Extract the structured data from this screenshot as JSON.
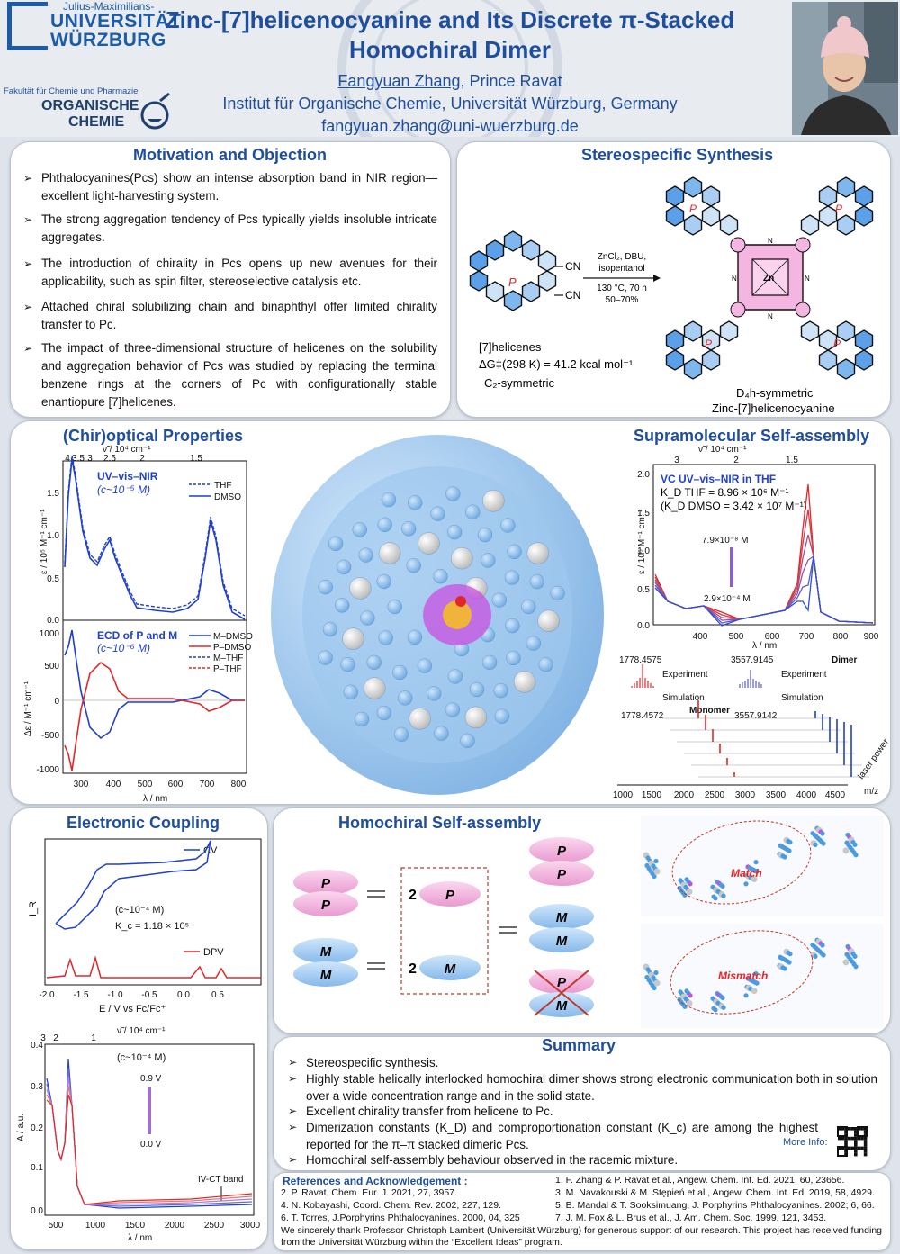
{
  "header": {
    "uni_line1": "Julius-Maximilians-",
    "uni_line2": "UNIVERSITÄT",
    "uni_line3": "WÜRZBURG",
    "faculty": "Fakultät für Chemie und Pharmazie",
    "oc_line1": "ORGANISCHE",
    "oc_line2": "CHEMIE",
    "title_line1": "Zinc-[7]helicenocyanine and Its Discrete π-Stacked",
    "title_line2": "Homochiral Dimer",
    "author1": "Fangyuan Zhang",
    "author2": ", Prince Ravat",
    "institute": "Institut für Organische Chemie, Universität Würzburg, Germany",
    "email": "fangyuan.zhang@uni-wuerzburg.de"
  },
  "motivation": {
    "title": "Motivation and Objection",
    "bullets": [
      "Phthalocyanines(Pcs) show an intense absorption band in NIR region—excellent light-harvesting system.",
      "The strong aggregation tendency of Pcs typically yields insoluble intricate aggregates.",
      "The introduction of chirality in Pcs opens up new avenues for their applicability, such as spin filter, stereoselective catalysis etc.",
      "Attached chiral solubilizing chain and binaphthyl offer limited chirality transfer to Pc.",
      "The impact of three-dimensional structure of helicenes on the solubility and aggregation behavior of Pcs was studied by replacing the terminal benzene rings at the corners of Pc with configurationally stable enantiopure [7]helicenes."
    ]
  },
  "synthesis": {
    "title": "Stereospecific Synthesis",
    "reagents_top1": "ZnCl₂, DBU,",
    "reagents_top2": "isopentanol",
    "reagents_bot1": "130 °C, 70 h",
    "reagents_bot2": "50–70%",
    "cn": "CN",
    "p": "P",
    "zn": "Zn",
    "n": "N",
    "helicene_name": "[7]helicenes",
    "barrier": "ΔG‡(298 K) = 41.2 kcal mol⁻¹",
    "sym1": "C₂-symmetric",
    "sym2": "D₄h-symmetric",
    "product_name": "Zinc-[7]helicenocyanine"
  },
  "chiroptical": {
    "title": "(Chir)optical Properties",
    "top_axis_label": "ν̃ / 10⁴ cm⁻¹",
    "top_ticks": [
      "4",
      "3.5",
      "3",
      "2.5",
      "2",
      "1.5"
    ],
    "uv_label": "UV–vis–NIR",
    "uv_conc": "(c~10⁻⁵ M)",
    "uv_ylabel": "ε / 10⁵ M⁻¹ cm⁻¹",
    "uv_yticks": [
      "1.5",
      "1.0",
      "0.5",
      "0.0"
    ],
    "uv_legend": [
      "THF",
      "DMSO"
    ],
    "ecd_label": "ECD of P and M",
    "ecd_conc": "(c~10⁻⁶ M)",
    "ecd_ylabel": "Δε / M⁻¹ cm⁻¹",
    "ecd_yticks": [
      "1000",
      "500",
      "0",
      "-500",
      "-1000"
    ],
    "ecd_legend": [
      "M–DMSO",
      "P–DMSO",
      "M–THF",
      "P–THF"
    ],
    "xticks": [
      "300",
      "400",
      "500",
      "600",
      "700",
      "800"
    ],
    "xlabel": "λ / nm"
  },
  "supramolecular": {
    "title": "Supramolecular Self-assembly",
    "top_axis_label": "ν̃ / 10⁴ cm⁻¹",
    "top_ticks": [
      "3",
      "2",
      "1.5"
    ],
    "vc_label": "VC UV–vis–NIR in THF",
    "kd_thf": "K_D THF = 8.96 × 10⁶ M⁻¹",
    "kd_dmso": "(K_D DMSO = 3.42 × 10⁷ M⁻¹)",
    "conc_high": "7.9×10⁻⁸ M",
    "conc_low": "2.9×10⁻⁴ M",
    "ylabel": "ε / 10⁵ M⁻¹ cm⁻¹",
    "yticks": [
      "2.0",
      "1.5",
      "1.0",
      "0.5",
      "0.0"
    ],
    "xticks": [
      "400",
      "500",
      "600",
      "700",
      "800",
      "900"
    ],
    "xlabel": "λ / nm",
    "ms_exp1": "1778.4575",
    "ms_sim1": "1778.4572",
    "ms_exp2": "3557.9145",
    "ms_sim2": "3557.9142",
    "experiment": "Experiment",
    "simulation": "Simulation",
    "monomer": "Monomer",
    "dimer": "Dimer",
    "laser": "laser power",
    "ms_xticks": [
      "1000",
      "1500",
      "2000",
      "2500",
      "3000",
      "3500",
      "4000",
      "4500"
    ],
    "ms_xlabel": "m/z"
  },
  "electronic": {
    "title": "Electronic Coupling",
    "cv": "CV",
    "dpv": "DPV",
    "conc": "(c~10⁻⁴ M)",
    "kc": "K_c = 1.18 × 10⁵",
    "ylabel": "I_R",
    "xticks": [
      "-2.0",
      "-1.5",
      "-1.0",
      "-0.5",
      "0.0",
      "0.5"
    ],
    "xlabel": "E / V vs Fc/Fc⁺",
    "top_ticks": [
      "3",
      "2",
      "1"
    ],
    "top_axis_label": "ν̃ / 10⁴ cm⁻¹",
    "sec_conc": "(c~10⁻⁴ M)",
    "v_high": "0.9 V",
    "v_low": "0.0 V",
    "ivct": "IV-CT band",
    "sec_ylabel": "A / a.u.",
    "sec_yticks": [
      "0.4",
      "0.3",
      "0.2",
      "0.1",
      "0.0"
    ],
    "sec_xticks": [
      "500",
      "1000",
      "1500",
      "2000",
      "2500",
      "3000"
    ],
    "sec_xlabel": "λ / nm"
  },
  "homochiral": {
    "title": "Homochiral Self-assembly",
    "p": "P",
    "m": "M",
    "two": "2",
    "match": "Match",
    "mismatch": "Mismatch"
  },
  "summary": {
    "title": "Summary",
    "bullets": [
      "Stereospecific synthesis.",
      "Highly stable helically interlocked homochiral dimer shows strong electronic communication both in solution over a wide concentration range and in the solid state.",
      "Excellent chirality transfer from helicene to Pc.",
      "Dimerization constants (K_D) and comproportionation constant (K_c) are among the highest reported for the π–π stacked dimeric Pcs.",
      "Homochiral self-assembly behaviour observed in the racemic mixture."
    ],
    "more_info": "More Info:"
  },
  "references": {
    "title": "References and Acknowledgement :",
    "left": [
      "2. P. Ravat, Chem. Eur. J. 2021, 27, 3957.",
      "4. N. Kobayashi, Coord. Chem. Rev. 2002, 227, 129.",
      "6. T. Torres, J.Porphyrins Phthalocyanines. 2000, 04, 325"
    ],
    "right": [
      "1. F. Zhang & P. Ravat et al., Angew. Chem. Int. Ed. 2021, 60, 23656.",
      "3. M. Navakouski & M. Stępień et al., Angew. Chem. Int. Ed. 2019, 58, 4929.",
      "5. B. Mandal & T. Sooksimuang, J. Porphyrins Phthalocyanines. 2002; 6, 66.",
      "7. J. M. Fox & L. Brus et al., J. Am. Chem. Soc. 1999, 121, 3453."
    ],
    "ack": "We sincerely thank Professor Christoph Lambert (Universität Würzburg) for generous support of our research. This project has received funding from the Universität Würzburg within the “Excellent Ideas” program."
  },
  "colors": {
    "brand_blue": "#1f4e9c",
    "uni_blue": "#1b5ba8",
    "p_pink": "#f4b6e0",
    "m_blue": "#a9cdf0",
    "red": "#e0282a"
  }
}
